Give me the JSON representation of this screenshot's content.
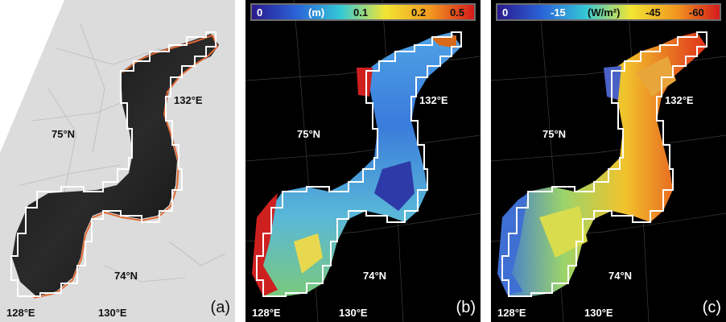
{
  "panels": [
    {
      "id": "a",
      "label": "(a)",
      "lat_labels": [
        "75°N",
        "74°N"
      ],
      "lon_labels": [
        "132°E",
        "128°E",
        "130°E"
      ]
    },
    {
      "id": "b",
      "label": "(b)",
      "lat_labels": [
        "75°N",
        "74°N"
      ],
      "lon_labels": [
        "132°E",
        "128°E",
        "130°E"
      ],
      "colorbar": {
        "unit": "(m)",
        "ticks": [
          "0",
          "0.1",
          "0.2",
          "0.5"
        ],
        "colors": [
          "#2b1a8c",
          "#2a63d8",
          "#35c9d6",
          "#f2e533",
          "#f29a20",
          "#d51b1b"
        ]
      }
    },
    {
      "id": "c",
      "label": "(c)",
      "lat_labels": [
        "75°N",
        "74°N"
      ],
      "lon_labels": [
        "132°E",
        "128°E",
        "130°E"
      ],
      "colorbar": {
        "unit": "(W/m²)",
        "ticks": [
          "0",
          "-15",
          "-45",
          "-60"
        ],
        "colors": [
          "#2b1a8c",
          "#2a63d8",
          "#35c9d6",
          "#f2e533",
          "#f29a20",
          "#d51b1b"
        ]
      }
    }
  ],
  "colors": {
    "polynya_outline": "#ffffff",
    "ice_edge_line": "#e06a36",
    "map_background": "#000000"
  }
}
